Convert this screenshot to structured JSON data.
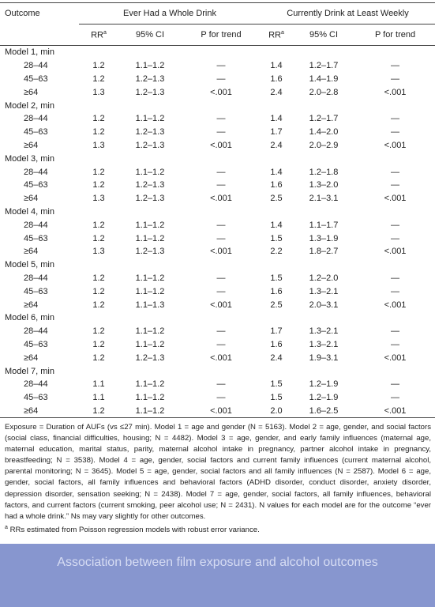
{
  "table": {
    "headers": {
      "outcome": "Outcome",
      "group1": "Ever Had a Whole Drink",
      "group2": "Currently Drink at Least Weekly"
    },
    "subheaders": [
      {
        "text": "RR",
        "sup": "a"
      },
      {
        "text": "95% CI"
      },
      {
        "text": "P for trend"
      }
    ],
    "models": [
      {
        "label": "Model 1, min",
        "rows": [
          {
            "age": "28–44",
            "cells": [
              "1.2",
              "1.1–1.2",
              "—",
              "1.4",
              "1.2–1.7",
              "—"
            ]
          },
          {
            "age": "45–63",
            "cells": [
              "1.2",
              "1.2–1.3",
              "—",
              "1.6",
              "1.4–1.9",
              "—"
            ]
          },
          {
            "age": "≥64",
            "cells": [
              "1.3",
              "1.2–1.3",
              "<.001",
              "2.4",
              "2.0–2.8",
              "<.001"
            ]
          }
        ]
      },
      {
        "label": "Model 2, min",
        "rows": [
          {
            "age": "28–44",
            "cells": [
              "1.2",
              "1.1–1.2",
              "—",
              "1.4",
              "1.2–1.7",
              "—"
            ]
          },
          {
            "age": "45–63",
            "cells": [
              "1.2",
              "1.2–1.3",
              "—",
              "1.7",
              "1.4–2.0",
              "—"
            ]
          },
          {
            "age": "≥64",
            "cells": [
              "1.3",
              "1.2–1.3",
              "<.001",
              "2.4",
              "2.0–2.9",
              "<.001"
            ]
          }
        ]
      },
      {
        "label": "Model 3, min",
        "rows": [
          {
            "age": "28–44",
            "cells": [
              "1.2",
              "1.1–1.2",
              "—",
              "1.4",
              "1.2–1.8",
              "—"
            ]
          },
          {
            "age": "45–63",
            "cells": [
              "1.2",
              "1.2–1.3",
              "—",
              "1.6",
              "1.3–2.0",
              "—"
            ]
          },
          {
            "age": "≥64",
            "cells": [
              "1.3",
              "1.2–1.3",
              "<.001",
              "2.5",
              "2.1–3.1",
              "<.001"
            ]
          }
        ]
      },
      {
        "label": "Model 4, min",
        "rows": [
          {
            "age": "28–44",
            "cells": [
              "1.2",
              "1.1–1.2",
              "—",
              "1.4",
              "1.1–1.7",
              "—"
            ]
          },
          {
            "age": "45–63",
            "cells": [
              "1.2",
              "1.1–1.2",
              "—",
              "1.5",
              "1.3–1.9",
              "—"
            ]
          },
          {
            "age": "≥64",
            "cells": [
              "1.3",
              "1.2–1.3",
              "<.001",
              "2.2",
              "1.8–2.7",
              "<.001"
            ]
          }
        ]
      },
      {
        "label": "Model 5, min",
        "rows": [
          {
            "age": "28–44",
            "cells": [
              "1.2",
              "1.1–1.2",
              "—",
              "1.5",
              "1.2–2.0",
              "—"
            ]
          },
          {
            "age": "45–63",
            "cells": [
              "1.2",
              "1.1–1.2",
              "—",
              "1.6",
              "1.3–2.1",
              "—"
            ]
          },
          {
            "age": "≥64",
            "cells": [
              "1.2",
              "1.1–1.3",
              "<.001",
              "2.5",
              "2.0–3.1",
              "<.001"
            ]
          }
        ]
      },
      {
        "label": "Model 6, min",
        "rows": [
          {
            "age": "28–44",
            "cells": [
              "1.2",
              "1.1–1.2",
              "—",
              "1.7",
              "1.3–2.1",
              "—"
            ]
          },
          {
            "age": "45–63",
            "cells": [
              "1.2",
              "1.1–1.2",
              "—",
              "1.6",
              "1.3–2.1",
              "—"
            ]
          },
          {
            "age": "≥64",
            "cells": [
              "1.2",
              "1.2–1.3",
              "<.001",
              "2.4",
              "1.9–3.1",
              "<.001"
            ]
          }
        ]
      },
      {
        "label": "Model 7, min",
        "rows": [
          {
            "age": "28–44",
            "cells": [
              "1.1",
              "1.1–1.2",
              "—",
              "1.5",
              "1.2–1.9",
              "—"
            ]
          },
          {
            "age": "45–63",
            "cells": [
              "1.1",
              "1.1–1.2",
              "—",
              "1.5",
              "1.2–1.9",
              "—"
            ]
          },
          {
            "age": "≥64",
            "cells": [
              "1.2",
              "1.1–1.2",
              "<.001",
              "2.0",
              "1.6–2.5",
              "<.001"
            ]
          }
        ]
      }
    ]
  },
  "footnote": "Exposure = Duration of AUFs (vs ≤27 min). Model 1 = age and gender (N = 5163). Model 2 = age, gender, and social factors (social class, financial difficulties, housing; N = 4482). Model 3 = age, gender, and early family influences (maternal age, maternal education, marital status, parity, maternal alcohol intake in pregnancy, partner alcohol intake in pregnancy, breastfeeding; N = 3538). Model 4 = age, gender, social factors and current family influences (current maternal alcohol, parental monitoring; N = 3645). Model 5 = age, gender, social factors and all family influences (N = 2587). Model 6 = age, gender, social factors, all family influences and behavioral factors (ADHD disorder, conduct disorder, anxiety disorder, depression disorder, sensation seeking; N = 2438). Model 7 = age, gender, social factors, all family influences, behavioral factors, and current factors (current smoking, peer alcohol use; N = 2431). N values for each model are for the outcome “ever had a whole drink.” Ns may vary slightly for other outcomes.",
  "footnote_a": {
    "mark": "a",
    "text": "RRs estimated from Poisson regression models with robust error variance."
  },
  "caption": "Association between film exposure and alcohol outcomes"
}
